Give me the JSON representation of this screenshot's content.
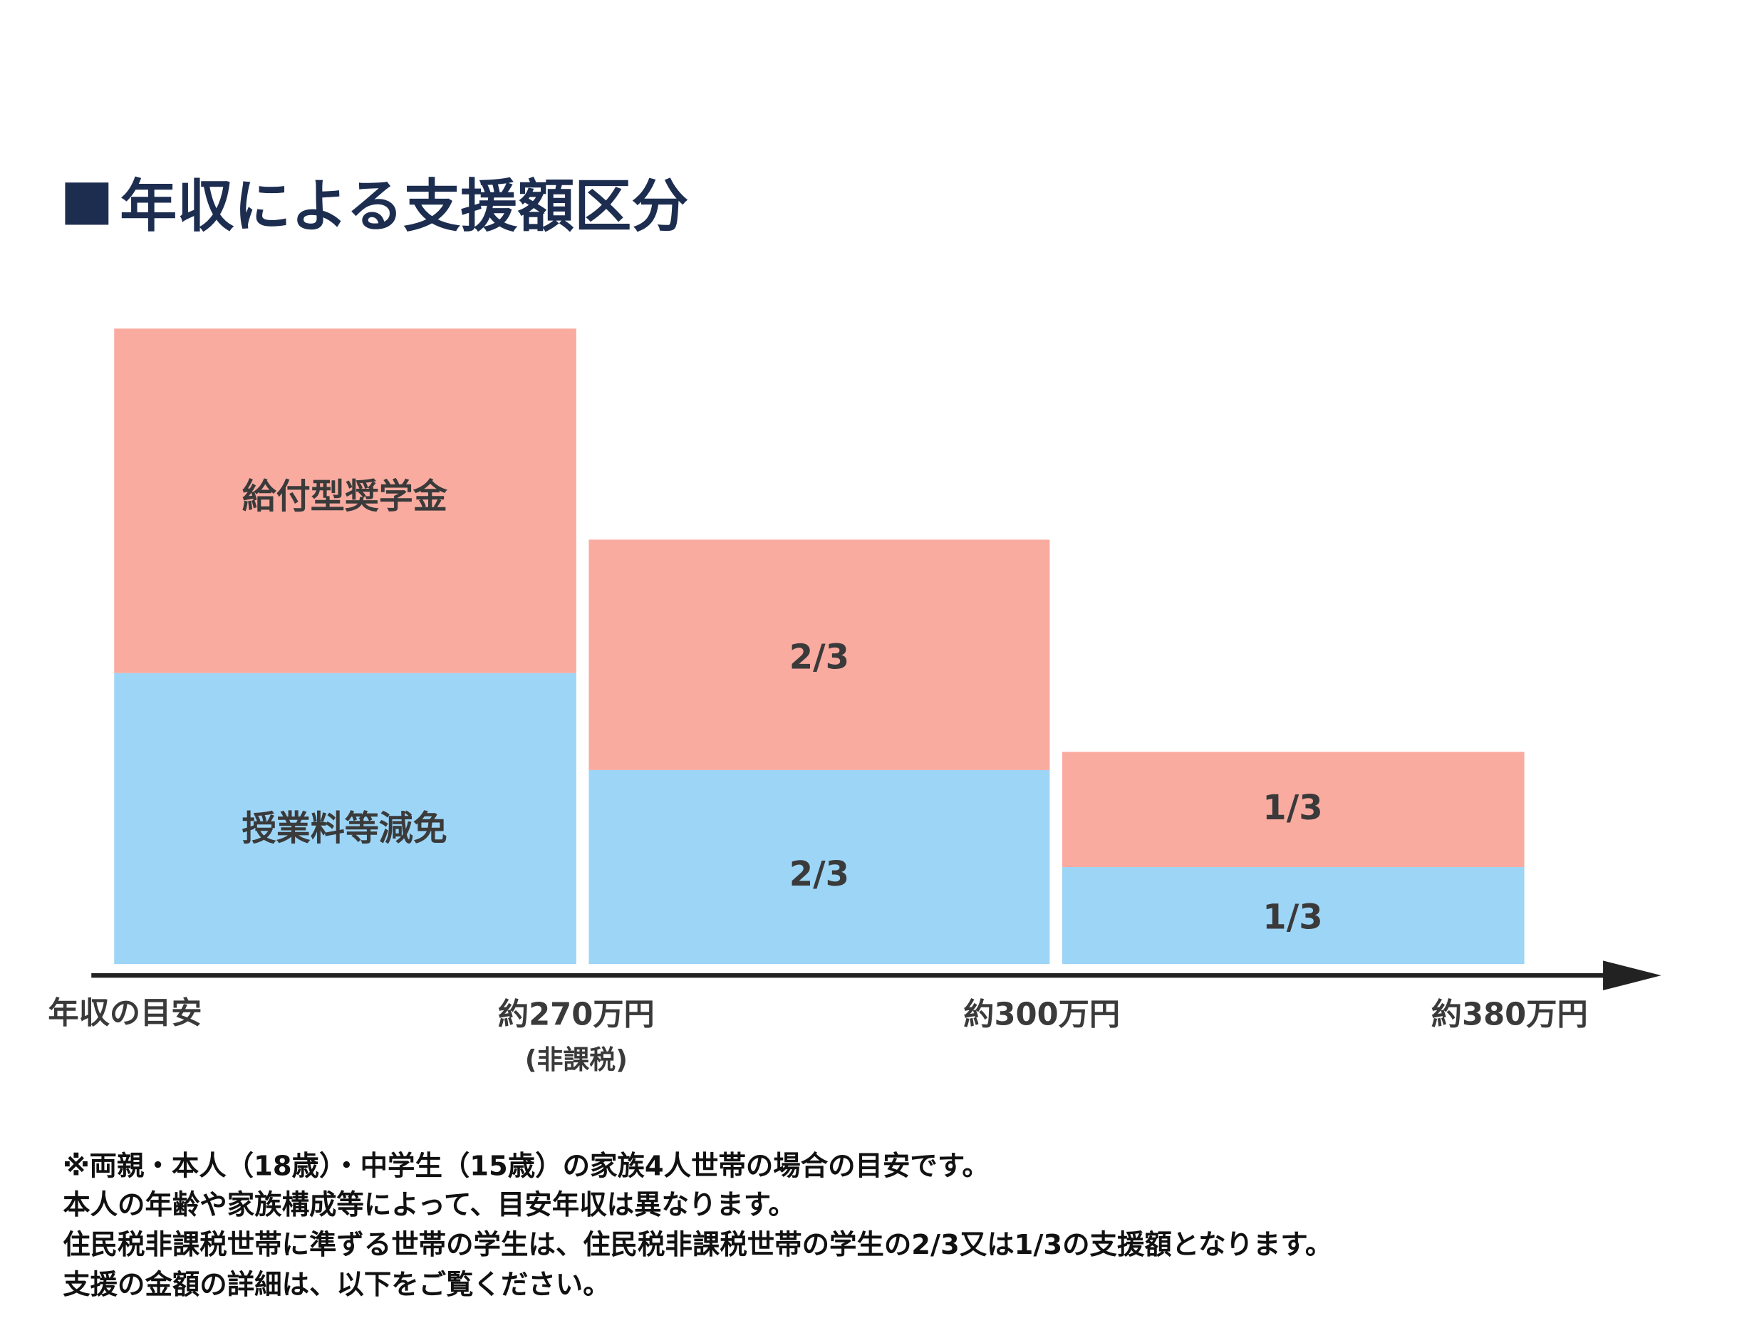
{
  "title": "年収による支援額区分",
  "bars": [
    {
      "top_label": "給付型奨学金",
      "bottom_label": "授業料等減免"
    },
    {
      "top_label": "2/3",
      "bottom_label": "2/3"
    },
    {
      "top_label": "1/3",
      "bottom_label": "1/3"
    }
  ],
  "axis_label": "年収の目安",
  "axis_ticks": [
    {
      "label": "約270万円",
      "sub": "(非課税)"
    },
    {
      "label": "約300万円"
    },
    {
      "label": "約380万円"
    }
  ],
  "notes": [
    "※両親・本人（18歳）・中学生（15歳）の家族4人世帯の場合の目安です。",
    "本人の年齢や家族構成等によって、目安年収は異なります。",
    "住民税非課税世帯に準ずる世帯の学生は、住民税非課税世帯の学生の2/3又は1/3の支援額となります。",
    "支援の金額の詳細は、以下をご覧ください。"
  ]
}
